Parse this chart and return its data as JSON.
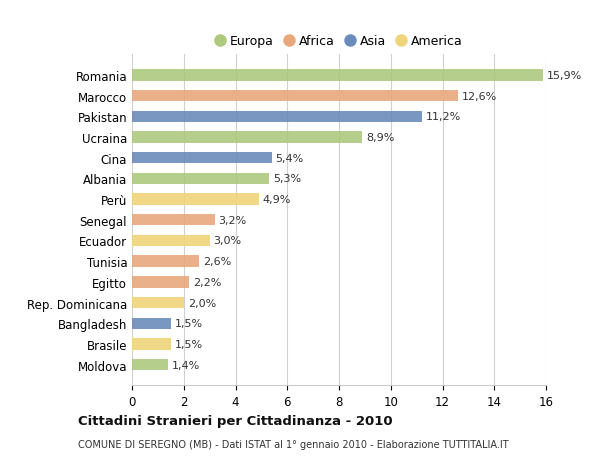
{
  "categories": [
    "Romania",
    "Marocco",
    "Pakistan",
    "Ucraina",
    "Cina",
    "Albania",
    "Perù",
    "Senegal",
    "Ecuador",
    "Tunisia",
    "Egitto",
    "Rep. Dominicana",
    "Bangladesh",
    "Brasile",
    "Moldova"
  ],
  "values": [
    15.9,
    12.6,
    11.2,
    8.9,
    5.4,
    5.3,
    4.9,
    3.2,
    3.0,
    2.6,
    2.2,
    2.0,
    1.5,
    1.5,
    1.4
  ],
  "labels": [
    "15,9%",
    "12,6%",
    "11,2%",
    "8,9%",
    "5,4%",
    "5,3%",
    "4,9%",
    "3,2%",
    "3,0%",
    "2,6%",
    "2,2%",
    "2,0%",
    "1,5%",
    "1,5%",
    "1,4%"
  ],
  "continents": [
    "Europa",
    "Africa",
    "Asia",
    "Europa",
    "Asia",
    "Europa",
    "America",
    "Africa",
    "America",
    "Africa",
    "Africa",
    "America",
    "Asia",
    "America",
    "Europa"
  ],
  "colors": {
    "Europa": "#adc97e",
    "Africa": "#e8a87c",
    "Asia": "#6b8cba",
    "America": "#f0d47a"
  },
  "background_color": "#ffffff",
  "grid_color": "#d0d0d0",
  "title": "Cittadini Stranieri per Cittadinanza - 2010",
  "subtitle": "COMUNE DI SEREGNO (MB) - Dati ISTAT al 1° gennaio 2010 - Elaborazione TUTTITALIA.IT",
  "xlim": [
    0,
    16
  ],
  "xticks": [
    0,
    2,
    4,
    6,
    8,
    10,
    12,
    14,
    16
  ],
  "legend_order": [
    "Europa",
    "Africa",
    "Asia",
    "America"
  ]
}
